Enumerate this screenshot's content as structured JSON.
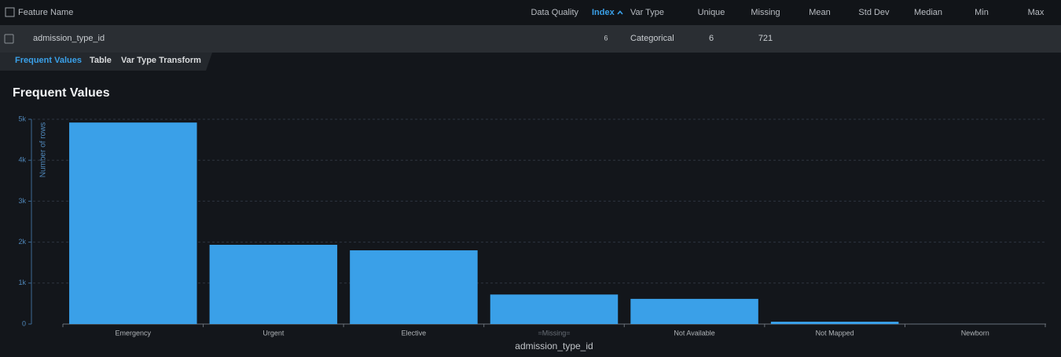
{
  "table": {
    "columns": [
      "Feature Name",
      "Data Quality",
      "Index",
      "Var Type",
      "Unique",
      "Missing",
      "Mean",
      "Std Dev",
      "Median",
      "Min",
      "Max"
    ],
    "row": {
      "feature_name": "admission_type_id",
      "index": 6,
      "var_type": "Categorical",
      "unique": 6,
      "missing": 721
    }
  },
  "tabs": [
    "Frequent Values",
    "Table",
    "Var Type Transform"
  ],
  "chart_data": {
    "type": "bar",
    "title": "Frequent Values",
    "x_label": "admission_type_id",
    "y_label": "Number of rows",
    "categories": [
      "Emergency",
      "Urgent",
      "Elective",
      "=Missing=",
      "Not Available",
      "Not Mapped",
      "Newborn"
    ],
    "values": [
      4920,
      1935,
      1800,
      721,
      615,
      57,
      1
    ],
    "color": "#3aa0e8",
    "ylim": [
      0,
      5000
    ],
    "yticks": [
      0,
      {
        "value": 1000,
        "label": "1k"
      },
      {
        "value": 2000,
        "label": "2k"
      },
      {
        "value": 3000,
        "label": "3k"
      },
      {
        "value": 4000,
        "label": "4k"
      },
      {
        "value": 5000,
        "label": "5k"
      }
    ],
    "grid": true
  }
}
